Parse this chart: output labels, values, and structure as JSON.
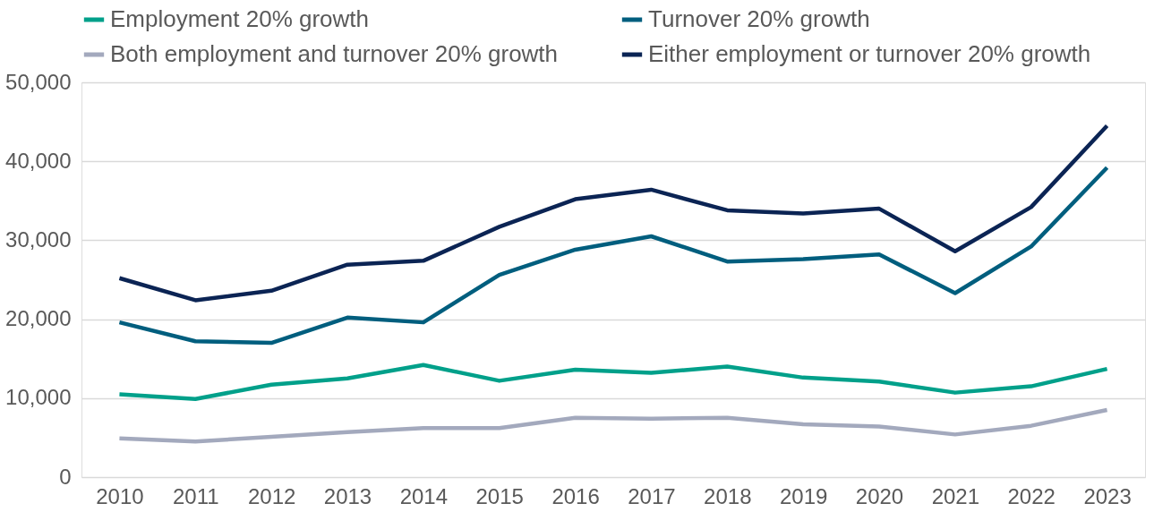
{
  "chart_data": {
    "type": "line",
    "categories": [
      "2010",
      "2011",
      "2012",
      "2013",
      "2014",
      "2015",
      "2016",
      "2017",
      "2018",
      "2019",
      "2020",
      "2021",
      "2022",
      "2023"
    ],
    "series": [
      {
        "name": "Employment 20% growth",
        "color": "#00a08a",
        "values": [
          10500,
          9900,
          11700,
          12500,
          14200,
          12200,
          13600,
          13200,
          14000,
          12600,
          12100,
          10700,
          11500,
          13700
        ]
      },
      {
        "name": "Turnover 20% growth",
        "color": "#005e7e",
        "values": [
          19600,
          17200,
          17000,
          20200,
          19600,
          25600,
          28800,
          30500,
          27300,
          27600,
          28200,
          23300,
          29200,
          39200
        ]
      },
      {
        "name": "Both employment and turnover 20% growth",
        "color": "#a3a9bd",
        "values": [
          4900,
          4500,
          5100,
          5700,
          6200,
          6200,
          7500,
          7400,
          7500,
          6700,
          6400,
          5400,
          6500,
          8500
        ]
      },
      {
        "name": "Either employment or turnover 20% growth",
        "color": "#0b2454",
        "values": [
          25200,
          22400,
          23600,
          26900,
          27400,
          31700,
          35200,
          36400,
          33800,
          33400,
          34000,
          28600,
          34200,
          44500
        ]
      }
    ],
    "ylim": [
      0,
      50000
    ],
    "yticks": [
      {
        "value": 0,
        "label": "0"
      },
      {
        "value": 10000,
        "label": "10,000"
      },
      {
        "value": 20000,
        "label": "20,000"
      },
      {
        "value": 30000,
        "label": "30,000"
      },
      {
        "value": 40000,
        "label": "40,000"
      },
      {
        "value": 50000,
        "label": "50,000"
      }
    ],
    "grid": "y",
    "legend": "top",
    "marker": "none",
    "line_style": "solid"
  }
}
